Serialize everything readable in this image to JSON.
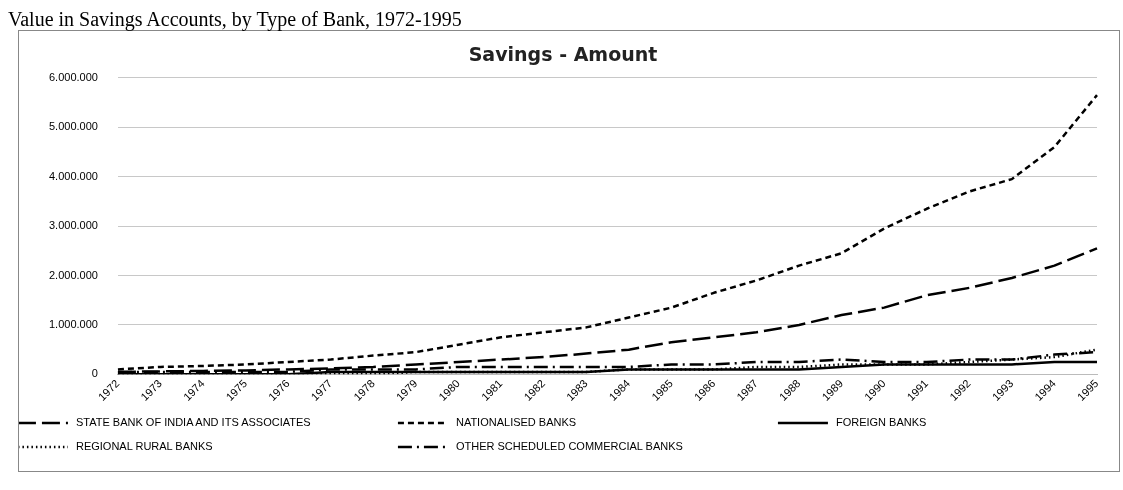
{
  "chart_data": {
    "type": "line",
    "title": "Value in Savings Accounts, by Type of Bank, 1972-1995",
    "subtitle": "Savings - Amount",
    "categories": [
      "1972",
      "1973",
      "1974",
      "1975",
      "1976",
      "1977",
      "1978",
      "1979",
      "1980",
      "1981",
      "1982",
      "1983",
      "1984",
      "1985",
      "1986",
      "1987",
      "1988",
      "1989",
      "1990",
      "1991",
      "1992",
      "1993",
      "1994",
      "1995"
    ],
    "series": [
      {
        "name": "STATE BANK OF INDIA AND ITS ASSOCIATES",
        "color": "#000000",
        "line_style": "dashed",
        "values": [
          50000,
          60000,
          70000,
          80000,
          100000,
          120000,
          150000,
          200000,
          250000,
          300000,
          350000,
          420000,
          500000,
          650000,
          750000,
          850000,
          1000000,
          1200000,
          1350000,
          1600000,
          1750000,
          1950000,
          2200000,
          2550000
        ]
      },
      {
        "name": "NATIONALISED BANKS",
        "color": "#000000",
        "line_style": "dashed",
        "values": [
          100000,
          150000,
          170000,
          200000,
          250000,
          300000,
          380000,
          450000,
          600000,
          750000,
          850000,
          950000,
          1150000,
          1350000,
          1650000,
          1900000,
          2200000,
          2450000,
          2950000,
          3350000,
          3700000,
          3950000,
          4600000,
          5650000
        ]
      },
      {
        "name": "FOREIGN BANKS",
        "color": "#000000",
        "line_style": "solid",
        "values": [
          0,
          0,
          0,
          0,
          0,
          50000,
          50000,
          50000,
          50000,
          50000,
          50000,
          50000,
          100000,
          100000,
          100000,
          100000,
          100000,
          150000,
          200000,
          200000,
          200000,
          200000,
          250000,
          250000
        ]
      },
      {
        "name": "REGIONAL RURAL BANKS",
        "color": "#000000",
        "line_style": "dotted",
        "values": [
          0,
          0,
          0,
          0,
          0,
          0,
          0,
          50000,
          50000,
          50000,
          50000,
          50000,
          100000,
          100000,
          100000,
          150000,
          150000,
          200000,
          200000,
          200000,
          250000,
          300000,
          350000,
          500000
        ]
      },
      {
        "name": "OTHER SCHEDULED COMMERCIAL BANKS",
        "color": "#000000",
        "line_style": "dashed",
        "values": [
          50000,
          50000,
          50000,
          50000,
          50000,
          100000,
          100000,
          100000,
          150000,
          150000,
          150000,
          150000,
          150000,
          200000,
          200000,
          250000,
          250000,
          300000,
          250000,
          250000,
          300000,
          300000,
          400000,
          450000
        ]
      }
    ],
    "ylim": [
      0,
      6000000
    ],
    "yticks": [
      0,
      {
        "value": 1000000,
        "label": "1.000.000"
      },
      {
        "value": 2000000,
        "label": "2.000.000"
      },
      {
        "value": 3000000,
        "label": "3.000.000"
      },
      {
        "value": 4000000,
        "label": "4.000.000"
      },
      {
        "value": 5000000,
        "label": "5.000.000"
      },
      {
        "value": 6000000,
        "label": "6.000.000"
      }
    ],
    "grid": "y",
    "legend": "bottom",
    "marker": "none"
  }
}
